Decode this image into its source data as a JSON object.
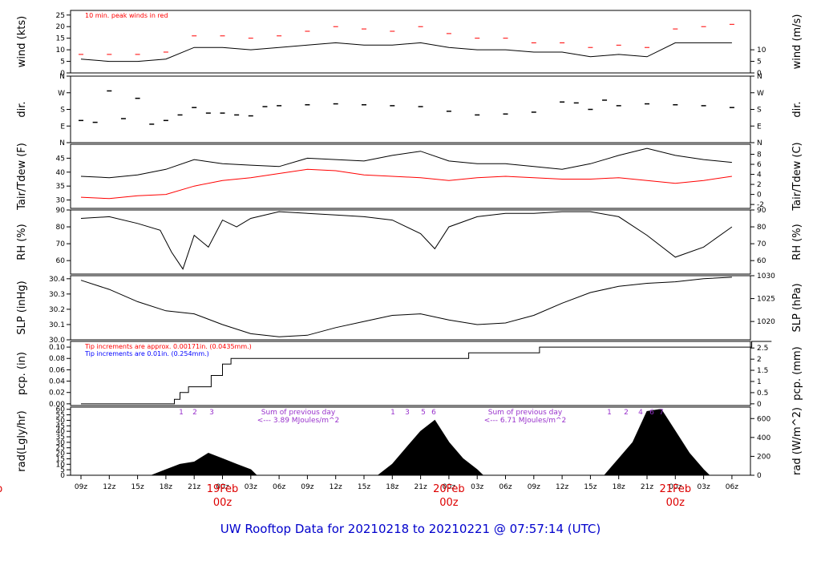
{
  "colors": {
    "primary": "#000000",
    "secondary": "#ff0000",
    "tertiary": "#0000ff",
    "annotation": "#9933cc",
    "date": "#dd0000",
    "title": "#0000cc"
  },
  "chart_data": {
    "type": "line",
    "title": "UW Rooftop Data for 20210218  to  20210221 @ 07:57:14  (UTC)",
    "x_ticks": [
      "09z",
      "12z",
      "15z",
      "18z",
      "21z",
      "00z",
      "03z",
      "06z",
      "09z",
      "12z",
      "15z",
      "18z",
      "21z",
      "00z",
      "03z",
      "06z",
      "09z",
      "12z",
      "15z",
      "18z",
      "21z",
      "00z",
      "03z",
      "06z"
    ],
    "day_labels": [
      {
        "day": "eb",
        "hour": "z",
        "tick": -3
      },
      {
        "day": "19Feb",
        "hour": "00z",
        "tick": 5
      },
      {
        "day": "20Feb",
        "hour": "00z",
        "tick": 13
      },
      {
        "day": "21Feb",
        "hour": "00z",
        "tick": 21
      }
    ],
    "panels": [
      {
        "id": "wind",
        "ylabel_left": "wind (kts)",
        "ylabel_right": "wind (m/s)",
        "ylim": [
          0,
          27
        ],
        "left_ticks": [
          "0",
          "5",
          "10",
          "15",
          "20",
          "25"
        ],
        "left_tick_values": [
          0,
          5,
          10,
          15,
          20,
          25
        ],
        "right_ticks": [
          "0",
          "5",
          "10"
        ],
        "right_tick_values": [
          0,
          5,
          10
        ],
        "annotation": "10 min. peak winds in red",
        "series": [
          {
            "name": "wind speed",
            "x": [
              0,
              1,
              2,
              3,
              4,
              5,
              6,
              7,
              8,
              9,
              10,
              11,
              12,
              13,
              14,
              15,
              16,
              17,
              18,
              19,
              20,
              21,
              22,
              23
            ],
            "y": [
              6,
              5,
              5,
              6,
              11,
              11,
              10,
              11,
              12,
              13,
              12,
              12,
              13,
              11,
              10,
              10,
              9,
              9,
              7,
              8,
              7,
              13,
              13,
              13
            ]
          },
          {
            "name": "10 min. peak winds",
            "x": [
              0,
              1,
              2,
              3,
              4,
              5,
              6,
              7,
              8,
              9,
              10,
              11,
              12,
              13,
              14,
              15,
              16,
              17,
              18,
              19,
              20,
              21,
              22,
              23
            ],
            "y": [
              8,
              8,
              8,
              9,
              16,
              16,
              15,
              16,
              18,
              20,
              19,
              18,
              20,
              17,
              15,
              15,
              13,
              13,
              11,
              12,
              11,
              19,
              20,
              21
            ]
          }
        ]
      },
      {
        "id": "dir",
        "ylabel_left": "dir.",
        "ylabel_right": "dir.",
        "ylim": [
          0,
          360
        ],
        "left_ticks": [
          "N",
          "E",
          "S",
          "W",
          "N"
        ],
        "left_tick_values": [
          0,
          90,
          180,
          270,
          360
        ],
        "right_ticks": [
          "N",
          "E",
          "S",
          "W",
          "N"
        ],
        "right_tick_values": [
          0,
          90,
          180,
          270,
          360
        ],
        "series": [
          {
            "name": "direction",
            "x": [
              0,
              0.5,
              1,
              1.5,
              2,
              2.5,
              3,
              3.5,
              4,
              4.5,
              5,
              5.5,
              6,
              6.5,
              7,
              8,
              9,
              10,
              11,
              12,
              13,
              14,
              15,
              16,
              17,
              17.5,
              18,
              18.5,
              19,
              20,
              21,
              22,
              23
            ],
            "y": [
              120,
              110,
              280,
              130,
              240,
              100,
              120,
              150,
              190,
              160,
              160,
              150,
              145,
              195,
              200,
              205,
              210,
              205,
              200,
              195,
              170,
              150,
              155,
              165,
              220,
              215,
              180,
              230,
              200,
              210,
              205,
              200,
              190
            ]
          }
        ]
      },
      {
        "id": "temp",
        "ylabel_left": "Tair/Tdew (F)",
        "ylabel_right": "Tair/Tdew (C)",
        "ylim": [
          27,
          50
        ],
        "left_ticks": [
          "30",
          "35",
          "40",
          "45"
        ],
        "left_tick_values": [
          30,
          35,
          40,
          45
        ],
        "right_ticks": [
          "-2",
          "0",
          "2",
          "4",
          "6",
          "8"
        ],
        "right_tick_values": [
          28.4,
          32,
          35.6,
          39.2,
          42.8,
          46.4
        ],
        "series": [
          {
            "name": "Tair",
            "x": [
              0,
              1,
              2,
              3,
              4,
              5,
              6,
              7,
              8,
              9,
              10,
              11,
              12,
              13,
              14,
              15,
              16,
              17,
              18,
              19,
              20,
              21,
              22,
              23
            ],
            "y": [
              38.5,
              38,
              39,
              41,
              44.5,
              43,
              42.5,
              42,
              45,
              44.5,
              44,
              46,
              47.5,
              44,
              43,
              43,
              42,
              41,
              43,
              46,
              48.5,
              46,
              44.5,
              43.5
            ]
          },
          {
            "name": "Tdew",
            "x": [
              0,
              1,
              2,
              3,
              4,
              5,
              6,
              7,
              8,
              9,
              10,
              11,
              12,
              13,
              14,
              15,
              16,
              17,
              18,
              19,
              20,
              21,
              22,
              23
            ],
            "y": [
              31,
              30.5,
              31.5,
              32,
              35,
              37,
              38,
              39.5,
              41,
              40.5,
              39,
              38.5,
              38,
              37,
              38,
              38.5,
              38,
              37.5,
              37.5,
              38,
              37,
              36,
              37,
              38.5
            ]
          }
        ]
      },
      {
        "id": "rh",
        "ylabel_left": "RH (%)",
        "ylabel_right": "RH (%)",
        "ylim": [
          52,
          90
        ],
        "left_ticks": [
          "60",
          "70",
          "80",
          "90"
        ],
        "left_tick_values": [
          60,
          70,
          80,
          90
        ],
        "right_ticks": [
          "60",
          "70",
          "80",
          "90"
        ],
        "right_tick_values": [
          60,
          70,
          80,
          90
        ],
        "series": [
          {
            "name": "RH",
            "x": [
              0,
              1,
              2,
              2.8,
              3.2,
              3.6,
              4,
              4.5,
              5,
              5.5,
              6,
              7,
              8,
              9,
              10,
              11,
              12,
              12.5,
              13,
              14,
              15,
              16,
              17,
              18,
              19,
              20,
              21,
              22,
              23
            ],
            "y": [
              85,
              86,
              82,
              78,
              65,
              55,
              75,
              68,
              84,
              80,
              85,
              89,
              88,
              87,
              86,
              84,
              76,
              67,
              80,
              86,
              88,
              88,
              89,
              89,
              86,
              75,
              62,
              68,
              80
            ]
          }
        ]
      },
      {
        "id": "slp",
        "ylabel_left": "SLP (inHg)",
        "ylabel_right": "SLP (hPa)",
        "ylim": [
          30.0,
          30.42
        ],
        "left_ticks": [
          "30.0",
          "30.1",
          "30.2",
          "30.3",
          "30.4"
        ],
        "left_tick_values": [
          30.0,
          30.1,
          30.2,
          30.3,
          30.4
        ],
        "right_ticks": [
          "1020",
          "1025",
          "1030"
        ],
        "right_tick_values": [
          30.12,
          30.27,
          30.42
        ],
        "series": [
          {
            "name": "SLP",
            "x": [
              0,
              1,
              2,
              3,
              4,
              5,
              6,
              7,
              8,
              9,
              10,
              11,
              12,
              13,
              14,
              15,
              16,
              17,
              18,
              19,
              20,
              21,
              22,
              23
            ],
            "y": [
              30.39,
              30.33,
              30.25,
              30.19,
              30.17,
              30.1,
              30.04,
              30.02,
              30.03,
              30.08,
              30.12,
              30.16,
              30.17,
              30.13,
              30.1,
              30.11,
              30.16,
              30.24,
              30.31,
              30.35,
              30.37,
              30.38,
              30.4,
              30.41
            ]
          }
        ]
      },
      {
        "id": "pcp",
        "ylabel_left": "pcp. (in)",
        "ylabel_right": "pcp. (mm)",
        "ylim": [
          -0.003,
          0.11
        ],
        "left_ticks": [
          "0.00",
          "0.02",
          "0.04",
          "0.06",
          "0.08",
          "0.10"
        ],
        "left_tick_values": [
          0,
          0.02,
          0.04,
          0.06,
          0.08,
          0.1
        ],
        "right_ticks": [
          "0",
          "0.5",
          "1",
          "1.5",
          "2",
          "2.5"
        ],
        "right_tick_values": [
          0,
          0.0197,
          0.0394,
          0.0591,
          0.0787,
          0.0984
        ],
        "annotation_red": "Tip increments are approx. 0.00171in. (0.0435mm.)",
        "annotation_blue": "Tip increments are 0.01in. (0.254mm.)",
        "series": [
          {
            "name": "precipitation",
            "x": [
              0,
              3.3,
              3.3,
              3.5,
              3.5,
              3.8,
              3.8,
              4.6,
              4.6,
              5.0,
              5.0,
              5.3,
              5.3,
              13.7,
              13.7,
              16.2,
              16.2,
              23.7,
              23.7,
              24.4
            ],
            "y": [
              0,
              0,
              0.008,
              0.008,
              0.02,
              0.02,
              0.03,
              0.03,
              0.05,
              0.05,
              0.07,
              0.07,
              0.08,
              0.08,
              0.09,
              0.09,
              0.1,
              0.1,
              0.11,
              0.11
            ]
          }
        ]
      },
      {
        "id": "rad",
        "ylabel_left": "rad(Lgly/hr)",
        "ylabel_right": "rad (W/m^2)",
        "ylim": [
          0,
          62
        ],
        "left_ticks": [
          "0",
          "5",
          "10",
          "15",
          "20",
          "25",
          "30",
          "35",
          "40",
          "45",
          "50",
          "55",
          "60"
        ],
        "left_tick_values": [
          0,
          5,
          10,
          15,
          20,
          25,
          30,
          35,
          40,
          45,
          50,
          55,
          60
        ],
        "right_ticks": [
          "0",
          "200",
          "400",
          "600"
        ],
        "right_tick_values": [
          0,
          17.2,
          34.4,
          51.6
        ],
        "series": [
          {
            "name": "radiation",
            "x": [
              2.5,
              3,
              3.5,
              4,
              4.5,
              5,
              5.5,
              6,
              6.2,
              10.5,
              11,
              11.5,
              12,
              12.5,
              13,
              13.5,
              14,
              14.2,
              18.5,
              19,
              19.5,
              20,
              20.5,
              21,
              21.5,
              22,
              22.2
            ],
            "y": [
              0,
              5,
              10,
              12,
              20,
              15,
              10,
              5,
              0,
              0,
              10,
              25,
              40,
              50,
              30,
              15,
              5,
              0,
              0,
              15,
              30,
              58,
              60,
              40,
              20,
              5,
              0
            ]
          }
        ],
        "day1_labels": [
          "1",
          "2",
          "3"
        ],
        "day2_labels": [
          "1",
          "3",
          "5",
          "6"
        ],
        "day3_labels": [
          "1",
          "2",
          "4",
          "6",
          "7"
        ],
        "sum1": [
          "Sum of previous day",
          "<--- 3.89 MJoules/m^2"
        ],
        "sum2": [
          "Sum of previous day",
          "<--- 6.71 MJoules/m^2"
        ]
      }
    ]
  }
}
